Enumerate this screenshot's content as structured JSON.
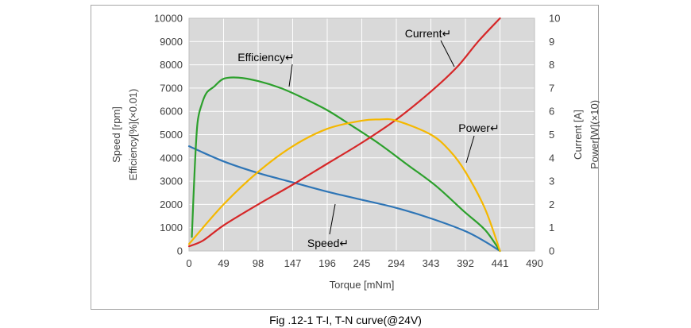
{
  "caption": "Fig .12-1 T-I, T-N curve(@24V)",
  "chart_data": {
    "type": "line",
    "xlabel": "Torque [mNm]",
    "ylabel_left": "Speed [rpm]",
    "ylabel_left2": "Efficiency[%](×0.01)",
    "ylabel_right": "Current [A]",
    "ylabel_right2": "Power[W](×10)",
    "xlim": [
      0,
      490
    ],
    "ylim_left": [
      0,
      10000
    ],
    "ylim_right": [
      0,
      10
    ],
    "x_ticks": [
      0,
      49,
      98,
      147,
      196,
      245,
      294,
      343,
      392,
      441,
      490
    ],
    "y_left_ticks": [
      0,
      1000,
      2000,
      3000,
      4000,
      5000,
      6000,
      7000,
      8000,
      9000,
      10000
    ],
    "y_right_ticks": [
      0,
      1,
      2,
      3,
      4,
      5,
      6,
      7,
      8,
      9,
      10
    ],
    "grid": true,
    "series": [
      {
        "name": "Speed",
        "axis": "left",
        "color": "#2e75b6",
        "x": [
          0,
          49,
          98,
          147,
          196,
          245,
          294,
          343,
          392,
          420,
          441
        ],
        "y": [
          4500,
          3850,
          3350,
          2950,
          2550,
          2200,
          1850,
          1400,
          850,
          400,
          0
        ]
      },
      {
        "name": "Efficiency",
        "axis": "left",
        "color": "#2ca02c",
        "x": [
          4,
          8,
          12,
          18,
          25,
          35,
          49,
          70,
          98,
          130,
          160,
          196,
          230,
          270,
          310,
          350,
          390,
          420,
          441
        ],
        "y": [
          600,
          3500,
          5500,
          6300,
          6800,
          7050,
          7400,
          7450,
          7300,
          7000,
          6600,
          6050,
          5400,
          4600,
          3700,
          2800,
          1700,
          900,
          0
        ]
      },
      {
        "name": "Current",
        "axis": "right",
        "color": "#d62728",
        "x": [
          0,
          20,
          49,
          98,
          147,
          196,
          245,
          294,
          343,
          380,
          410,
          441
        ],
        "y": [
          0.2,
          0.45,
          1.1,
          2.0,
          2.85,
          3.75,
          4.65,
          5.65,
          6.85,
          7.9,
          9.0,
          10.0
        ]
      },
      {
        "name": "Power",
        "axis": "right",
        "color": "#f5b800",
        "x": [
          0,
          49,
          98,
          147,
          196,
          245,
          270,
          294,
          343,
          370,
          392,
          420,
          441
        ],
        "y": [
          0.3,
          2.0,
          3.4,
          4.5,
          5.25,
          5.6,
          5.65,
          5.6,
          5.0,
          4.3,
          3.4,
          1.8,
          0
        ]
      }
    ]
  }
}
